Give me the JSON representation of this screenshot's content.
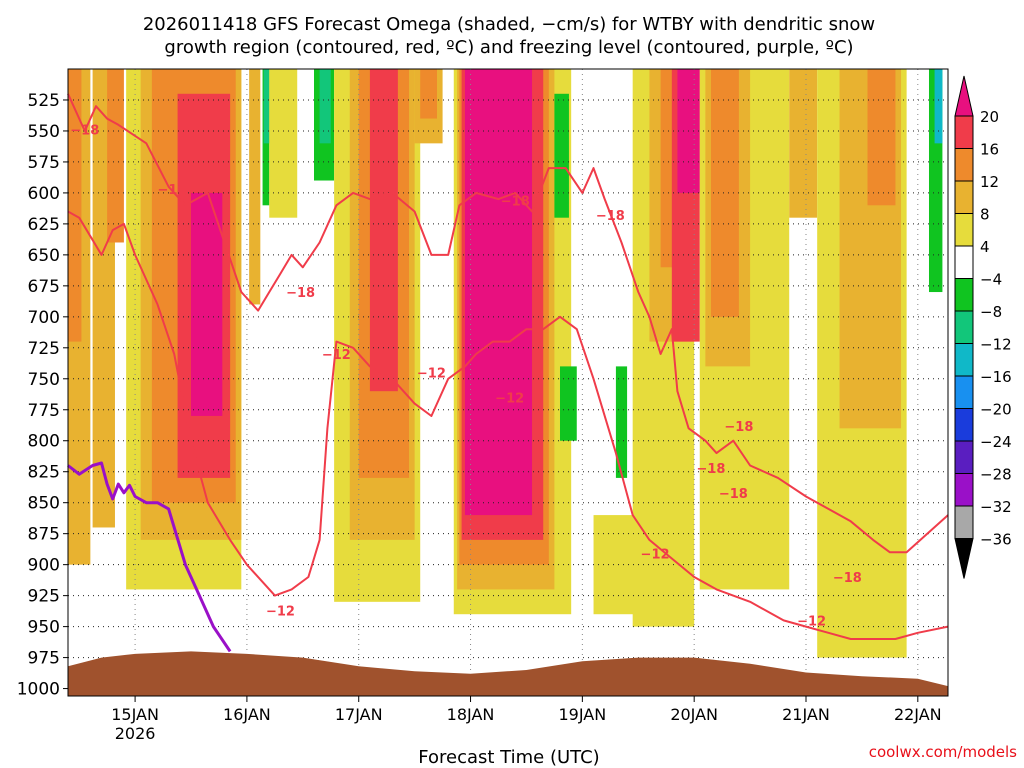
{
  "chart_data": {
    "type": "heatmap",
    "title_line1": "2026011418 GFS Forecast Omega (shaded, −cm/s) for WTBY with dendritic snow",
    "title_line2": "growth region (contoured, red, ºC) and freezing level (contoured, purple, ºC)",
    "xlabel": "Forecast Time (UTC)",
    "credit": "coolwx.com/models",
    "x_range_days": [
      14.4,
      22.27
    ],
    "x_ticks": [
      {
        "t": 15,
        "label": "15JAN",
        "sub": "2026"
      },
      {
        "t": 16,
        "label": "16JAN",
        "sub": ""
      },
      {
        "t": 17,
        "label": "17JAN",
        "sub": ""
      },
      {
        "t": 18,
        "label": "18JAN",
        "sub": ""
      },
      {
        "t": 19,
        "label": "19JAN",
        "sub": ""
      },
      {
        "t": 20,
        "label": "20JAN",
        "sub": ""
      },
      {
        "t": 21,
        "label": "21JAN",
        "sub": ""
      },
      {
        "t": 22,
        "label": "22JAN",
        "sub": ""
      }
    ],
    "y_range_hpa": [
      500,
      1006
    ],
    "y_ticks": [
      525,
      550,
      575,
      600,
      625,
      650,
      675,
      700,
      725,
      750,
      775,
      800,
      825,
      850,
      875,
      900,
      925,
      950,
      975,
      1000
    ],
    "colorbar": {
      "labels": [
        "20",
        "16",
        "12",
        "8",
        "4",
        "−4",
        "−8",
        "−12",
        "−16",
        "−20",
        "−24",
        "−28",
        "−32",
        "−36"
      ],
      "colors": [
        "#e8107f",
        "#f03c4a",
        "#ee8a2c",
        "#e8b230",
        "#e6dc3c",
        "#ffffff",
        "#10c420",
        "#12c67a",
        "#10b8c8",
        "#1890f0",
        "#1a3cdc",
        "#5a1ec0",
        "#9a10c8",
        "#a8a8a8",
        "#000000"
      ]
    },
    "omega_bands": [
      {
        "t1": 14.4,
        "t2": 14.6,
        "p_top": 500,
        "p_bot": 900,
        "level": "8"
      },
      {
        "t1": 14.4,
        "t2": 14.52,
        "p_top": 500,
        "p_bot": 720,
        "level": "12"
      },
      {
        "t1": 14.62,
        "t2": 14.82,
        "p_top": 500,
        "p_bot": 870,
        "level": "8"
      },
      {
        "t1": 14.75,
        "t2": 14.9,
        "p_top": 500,
        "p_bot": 640,
        "level": "12"
      },
      {
        "t1": 14.92,
        "t2": 15.95,
        "p_top": 500,
        "p_bot": 920,
        "level": "4"
      },
      {
        "t1": 15.05,
        "t2": 15.95,
        "p_top": 500,
        "p_bot": 880,
        "level": "8"
      },
      {
        "t1": 15.15,
        "t2": 15.9,
        "p_top": 500,
        "p_bot": 850,
        "level": "12"
      },
      {
        "t1": 15.38,
        "t2": 15.85,
        "p_top": 520,
        "p_bot": 830,
        "level": "16"
      },
      {
        "t1": 15.5,
        "t2": 15.78,
        "p_top": 600,
        "p_bot": 780,
        "level": "20"
      },
      {
        "t1": 16.02,
        "t2": 16.12,
        "p_top": 500,
        "p_bot": 690,
        "level": "8"
      },
      {
        "t1": 16.14,
        "t2": 16.2,
        "p_top": 500,
        "p_bot": 610,
        "level": "-8"
      },
      {
        "t1": 16.15,
        "t2": 16.2,
        "p_top": 500,
        "p_bot": 560,
        "level": "-12"
      },
      {
        "t1": 16.2,
        "t2": 16.45,
        "p_top": 500,
        "p_bot": 620,
        "level": "4"
      },
      {
        "t1": 16.6,
        "t2": 16.78,
        "p_top": 500,
        "p_bot": 590,
        "level": "-8"
      },
      {
        "t1": 16.65,
        "t2": 16.75,
        "p_top": 500,
        "p_bot": 560,
        "level": "-12"
      },
      {
        "t1": 16.78,
        "t2": 17.55,
        "p_top": 500,
        "p_bot": 930,
        "level": "4"
      },
      {
        "t1": 16.92,
        "t2": 17.5,
        "p_top": 500,
        "p_bot": 880,
        "level": "8"
      },
      {
        "t1": 17.0,
        "t2": 17.45,
        "p_top": 500,
        "p_bot": 830,
        "level": "12"
      },
      {
        "t1": 17.1,
        "t2": 17.35,
        "p_top": 500,
        "p_bot": 760,
        "level": "16"
      },
      {
        "t1": 17.5,
        "t2": 17.75,
        "p_top": 500,
        "p_bot": 560,
        "level": "8"
      },
      {
        "t1": 17.55,
        "t2": 17.7,
        "p_top": 500,
        "p_bot": 540,
        "level": "12"
      },
      {
        "t1": 17.85,
        "t2": 18.9,
        "p_top": 500,
        "p_bot": 940,
        "level": "4"
      },
      {
        "t1": 17.88,
        "t2": 18.75,
        "p_top": 500,
        "p_bot": 920,
        "level": "8"
      },
      {
        "t1": 17.9,
        "t2": 18.7,
        "p_top": 500,
        "p_bot": 900,
        "level": "12"
      },
      {
        "t1": 17.92,
        "t2": 18.65,
        "p_top": 500,
        "p_bot": 880,
        "level": "16"
      },
      {
        "t1": 17.95,
        "t2": 18.55,
        "p_top": 500,
        "p_bot": 860,
        "level": "20"
      },
      {
        "t1": 18.75,
        "t2": 18.88,
        "p_top": 520,
        "p_bot": 620,
        "level": "-8"
      },
      {
        "t1": 18.8,
        "t2": 18.95,
        "p_top": 740,
        "p_bot": 800,
        "level": "-8"
      },
      {
        "t1": 19.3,
        "t2": 19.4,
        "p_top": 740,
        "p_bot": 830,
        "level": "-8"
      },
      {
        "t1": 19.1,
        "t2": 19.6,
        "p_top": 860,
        "p_bot": 940,
        "level": "4"
      },
      {
        "t1": 19.45,
        "t2": 20.0,
        "p_top": 500,
        "p_bot": 950,
        "level": "4"
      },
      {
        "t1": 19.6,
        "t2": 20.0,
        "p_top": 500,
        "p_bot": 720,
        "level": "8"
      },
      {
        "t1": 19.7,
        "t2": 20.0,
        "p_top": 500,
        "p_bot": 660,
        "level": "12"
      },
      {
        "t1": 19.8,
        "t2": 20.05,
        "p_top": 500,
        "p_bot": 720,
        "level": "16"
      },
      {
        "t1": 19.85,
        "t2": 20.05,
        "p_top": 500,
        "p_bot": 600,
        "level": "20"
      },
      {
        "t1": 20.05,
        "t2": 20.85,
        "p_top": 500,
        "p_bot": 920,
        "level": "4"
      },
      {
        "t1": 20.1,
        "t2": 20.5,
        "p_top": 500,
        "p_bot": 740,
        "level": "8"
      },
      {
        "t1": 20.15,
        "t2": 20.4,
        "p_top": 500,
        "p_bot": 700,
        "level": "12"
      },
      {
        "t1": 20.85,
        "t2": 21.1,
        "p_top": 500,
        "p_bot": 620,
        "level": "8"
      },
      {
        "t1": 21.1,
        "t2": 21.9,
        "p_top": 500,
        "p_bot": 975,
        "level": "4"
      },
      {
        "t1": 21.3,
        "t2": 21.85,
        "p_top": 500,
        "p_bot": 790,
        "level": "8"
      },
      {
        "t1": 21.55,
        "t2": 21.8,
        "p_top": 500,
        "p_bot": 610,
        "level": "12"
      },
      {
        "t1": 22.1,
        "t2": 22.22,
        "p_top": 500,
        "p_bot": 680,
        "level": "-8"
      },
      {
        "t1": 22.15,
        "t2": 22.22,
        "p_top": 500,
        "p_bot": 560,
        "level": "-16"
      }
    ],
    "dgz_contours": [
      {
        "name": "-18 upper",
        "color": "#f03c4a",
        "points": [
          [
            14.4,
            520
          ],
          [
            14.55,
            550
          ],
          [
            14.65,
            530
          ],
          [
            14.75,
            540
          ],
          [
            14.85,
            545
          ],
          [
            15.1,
            560
          ],
          [
            15.3,
            595
          ],
          [
            15.45,
            610
          ],
          [
            15.65,
            600
          ],
          [
            15.8,
            640
          ],
          [
            15.95,
            680
          ],
          [
            16.1,
            695
          ],
          [
            16.2,
            680
          ],
          [
            16.3,
            665
          ],
          [
            16.4,
            650
          ],
          [
            16.5,
            660
          ],
          [
            16.65,
            640
          ],
          [
            16.8,
            610
          ],
          [
            16.95,
            600
          ],
          [
            17.1,
            605
          ],
          [
            17.3,
            600
          ],
          [
            17.5,
            615
          ],
          [
            17.65,
            650
          ],
          [
            17.8,
            650
          ],
          [
            17.9,
            610
          ],
          [
            18.05,
            600
          ],
          [
            18.25,
            605
          ],
          [
            18.4,
            600
          ],
          [
            18.55,
            615
          ],
          [
            18.7,
            580
          ],
          [
            18.85,
            580
          ],
          [
            19.0,
            600
          ],
          [
            19.1,
            580
          ],
          [
            19.2,
            605
          ],
          [
            19.35,
            640
          ],
          [
            19.5,
            680
          ],
          [
            19.6,
            700
          ],
          [
            19.7,
            730
          ],
          [
            19.8,
            710
          ],
          [
            19.85,
            760
          ],
          [
            19.95,
            790
          ],
          [
            20.1,
            800
          ],
          [
            20.2,
            810
          ],
          [
            20.35,
            800
          ],
          [
            20.5,
            820
          ],
          [
            20.75,
            830
          ],
          [
            21.0,
            845
          ],
          [
            21.2,
            855
          ],
          [
            21.4,
            865
          ],
          [
            21.6,
            880
          ],
          [
            21.75,
            890
          ],
          [
            21.9,
            890
          ],
          [
            22.27,
            860
          ]
        ]
      },
      {
        "name": "-12 lower",
        "color": "#f03c4a",
        "points": [
          [
            14.4,
            615
          ],
          [
            14.5,
            620
          ],
          [
            14.6,
            635
          ],
          [
            14.7,
            650
          ],
          [
            14.8,
            630
          ],
          [
            14.9,
            625
          ],
          [
            15.0,
            650
          ],
          [
            15.2,
            690
          ],
          [
            15.35,
            730
          ],
          [
            15.5,
            800
          ],
          [
            15.65,
            850
          ],
          [
            15.85,
            880
          ],
          [
            16.0,
            900
          ],
          [
            16.15,
            915
          ],
          [
            16.25,
            925
          ],
          [
            16.4,
            920
          ],
          [
            16.55,
            910
          ],
          [
            16.65,
            880
          ],
          [
            16.72,
            790
          ],
          [
            16.8,
            720
          ],
          [
            16.95,
            725
          ],
          [
            17.1,
            740
          ],
          [
            17.3,
            750
          ],
          [
            17.5,
            770
          ],
          [
            17.65,
            780
          ],
          [
            17.8,
            750
          ],
          [
            17.95,
            740
          ],
          [
            18.05,
            730
          ],
          [
            18.2,
            720
          ],
          [
            18.35,
            720
          ],
          [
            18.5,
            710
          ],
          [
            18.65,
            710
          ],
          [
            18.8,
            700
          ],
          [
            18.95,
            710
          ],
          [
            19.1,
            750
          ],
          [
            19.3,
            810
          ],
          [
            19.45,
            860
          ],
          [
            19.6,
            880
          ],
          [
            19.8,
            895
          ],
          [
            20.0,
            910
          ],
          [
            20.2,
            920
          ],
          [
            20.5,
            930
          ],
          [
            20.8,
            945
          ],
          [
            21.0,
            950
          ],
          [
            21.2,
            955
          ],
          [
            21.4,
            960
          ],
          [
            21.6,
            960
          ],
          [
            21.8,
            960
          ],
          [
            22.0,
            955
          ],
          [
            22.27,
            950
          ]
        ]
      }
    ],
    "contour_labels": [
      {
        "t": 14.55,
        "p": 549,
        "text": "−18"
      },
      {
        "t": 15.33,
        "p": 597,
        "text": "−18"
      },
      {
        "t": 16.48,
        "p": 680,
        "text": "−18"
      },
      {
        "t": 17.22,
        "p": 600,
        "text": "−18"
      },
      {
        "t": 18.4,
        "p": 606,
        "text": "−18"
      },
      {
        "t": 19.25,
        "p": 618,
        "text": "−18"
      },
      {
        "t": 20.4,
        "p": 788,
        "text": "−18"
      },
      {
        "t": 20.15,
        "p": 822,
        "text": "−18"
      },
      {
        "t": 20.35,
        "p": 842,
        "text": "−18"
      },
      {
        "t": 21.37,
        "p": 910,
        "text": "−18"
      },
      {
        "t": 16.8,
        "p": 730,
        "text": "−12"
      },
      {
        "t": 16.3,
        "p": 937,
        "text": "−12"
      },
      {
        "t": 17.65,
        "p": 745,
        "text": "−12"
      },
      {
        "t": 18.35,
        "p": 765,
        "text": "−12"
      },
      {
        "t": 19.65,
        "p": 891,
        "text": "−12"
      },
      {
        "t": 21.05,
        "p": 945,
        "text": "−12"
      }
    ],
    "freezing_contours": [
      {
        "name": "0C",
        "color": "#9a10c8",
        "points": [
          [
            14.4,
            820
          ],
          [
            14.5,
            827
          ],
          [
            14.62,
            820
          ],
          [
            14.7,
            818
          ],
          [
            14.75,
            835
          ],
          [
            14.8,
            847
          ],
          [
            14.85,
            835
          ],
          [
            14.9,
            842
          ],
          [
            14.95,
            836
          ],
          [
            15.0,
            845
          ],
          [
            15.1,
            850
          ],
          [
            15.2,
            850
          ],
          [
            15.3,
            855
          ],
          [
            15.45,
            900
          ],
          [
            15.55,
            920
          ],
          [
            15.7,
            950
          ],
          [
            15.85,
            970
          ]
        ]
      }
    ],
    "terrain": {
      "color": "#a0522d",
      "surface_p": [
        [
          14.4,
          982
        ],
        [
          14.7,
          975
        ],
        [
          15.0,
          972
        ],
        [
          15.5,
          970
        ],
        [
          16.0,
          972
        ],
        [
          16.5,
          975
        ],
        [
          17.0,
          982
        ],
        [
          17.5,
          986
        ],
        [
          18.0,
          988
        ],
        [
          18.5,
          985
        ],
        [
          19.0,
          978
        ],
        [
          19.5,
          975
        ],
        [
          20.0,
          975
        ],
        [
          20.5,
          980
        ],
        [
          21.0,
          987
        ],
        [
          21.5,
          990
        ],
        [
          22.0,
          992
        ],
        [
          22.27,
          998
        ]
      ]
    }
  }
}
